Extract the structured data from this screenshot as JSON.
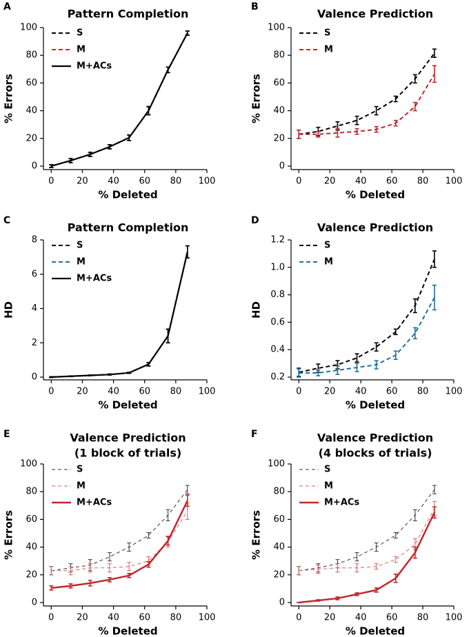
{
  "chart_data": [
    {
      "type": "line",
      "panel": "A",
      "title": "Pattern Completion",
      "xlabel": "% Deleted",
      "ylabel": "% Errors",
      "x": [
        0,
        12.5,
        25,
        37.5,
        50,
        62.5,
        75,
        87.5
      ],
      "xlim": [
        -5,
        100
      ],
      "xticks": [
        0,
        20,
        40,
        60,
        80,
        100
      ],
      "ylim": [
        -2.5,
        100
      ],
      "yticks": [
        0,
        20,
        40,
        60,
        80,
        100
      ],
      "legend": "upper left",
      "series": [
        {
          "name": "S",
          "color": "#000000",
          "linestyle": "dashed",
          "linewidth": 2,
          "values": [
            0,
            4,
            8.5,
            14,
            20.5,
            40,
            69.5,
            96
          ],
          "errors": [
            1,
            1.5,
            1.5,
            1.5,
            2,
            3,
            2,
            1.5
          ]
        },
        {
          "name": "M",
          "color": "#c0282d",
          "linestyle": "dashed",
          "linewidth": 2,
          "values": [
            0,
            4,
            8.5,
            14,
            20.5,
            40,
            69.5,
            96
          ],
          "errors": [
            1,
            1.5,
            1.5,
            1.5,
            2,
            3,
            2,
            1.5
          ]
        },
        {
          "name": "M+ACs",
          "color": "#000000",
          "linestyle": "solid",
          "linewidth": 2.2,
          "values": [
            0,
            4,
            8.5,
            14,
            20.5,
            40,
            69.5,
            96
          ],
          "errors": [
            1,
            1.5,
            1.5,
            1.5,
            2,
            3,
            2,
            1.5
          ]
        }
      ]
    },
    {
      "type": "line",
      "panel": "B",
      "title": "Valence Prediction",
      "xlabel": "% Deleted",
      "ylabel": "% Errors",
      "x": [
        0,
        12.5,
        25,
        37.5,
        50,
        62.5,
        75,
        87.5
      ],
      "xlim": [
        -5,
        100
      ],
      "xticks": [
        0,
        20,
        40,
        60,
        80,
        100
      ],
      "ylim": [
        -2.5,
        100
      ],
      "yticks": [
        0,
        20,
        40,
        60,
        80,
        100
      ],
      "legend": "upper left",
      "series": [
        {
          "name": "S",
          "color": "#000000",
          "linestyle": "dashed",
          "linewidth": 2,
          "values": [
            23,
            25,
            29,
            33,
            40,
            48.5,
            63,
            81.5
          ],
          "errors": [
            3,
            3,
            3,
            3,
            3,
            2,
            3,
            3
          ]
        },
        {
          "name": "M",
          "color": "#c0282d",
          "linestyle": "dashed",
          "linewidth": 2,
          "values": [
            23,
            23,
            24,
            25,
            26.5,
            31,
            43,
            66.5
          ],
          "errors": [
            3,
            2,
            3,
            2,
            2,
            2,
            3,
            6
          ]
        }
      ]
    },
    {
      "type": "line",
      "panel": "C",
      "title": "Pattern Completion",
      "xlabel": "% Deleted",
      "ylabel": "HD",
      "x": [
        0,
        12.5,
        25,
        37.5,
        50,
        62.5,
        75,
        87.5
      ],
      "xlim": [
        -5,
        100
      ],
      "xticks": [
        0,
        20,
        40,
        60,
        80,
        100
      ],
      "ylim": [
        -0.16,
        8
      ],
      "yticks": [
        0,
        2,
        4,
        6,
        8
      ],
      "legend": "upper left",
      "series": [
        {
          "name": "S",
          "color": "#000000",
          "linestyle": "dashed",
          "linewidth": 2,
          "values": [
            0,
            0.05,
            0.1,
            0.15,
            0.25,
            0.75,
            2.4,
            7.3
          ],
          "errors": [
            0.02,
            0.02,
            0.02,
            0.03,
            0.03,
            0.1,
            0.4,
            0.35
          ]
        },
        {
          "name": "M",
          "color": "#1f6f9e",
          "linestyle": "dashed",
          "linewidth": 2,
          "values": [
            0,
            0.05,
            0.1,
            0.15,
            0.25,
            0.75,
            2.4,
            7.3
          ],
          "errors": [
            0.02,
            0.02,
            0.02,
            0.03,
            0.03,
            0.1,
            0.4,
            0.35
          ]
        },
        {
          "name": "M+ACs",
          "color": "#000000",
          "linestyle": "solid",
          "linewidth": 2.2,
          "values": [
            0,
            0.05,
            0.1,
            0.15,
            0.25,
            0.75,
            2.4,
            7.3
          ],
          "errors": [
            0.02,
            0.02,
            0.02,
            0.03,
            0.03,
            0.1,
            0.4,
            0.35
          ]
        }
      ]
    },
    {
      "type": "line",
      "panel": "D",
      "title": "Valence Prediction",
      "xlabel": "% Deleted",
      "ylabel": "HD",
      "x": [
        0,
        12.5,
        25,
        37.5,
        50,
        62.5,
        75,
        87.5
      ],
      "xlim": [
        -5,
        100
      ],
      "xticks": [
        0,
        20,
        40,
        60,
        80,
        100
      ],
      "ylim": [
        0.18,
        1.2
      ],
      "yticks": [
        0.2,
        0.4,
        0.6,
        0.8,
        {
          "value": 1,
          "label": "1.0"
        },
        1.2
      ],
      "legend": "upper left",
      "series": [
        {
          "name": "S",
          "color": "#000000",
          "linestyle": "dashed",
          "linewidth": 2,
          "values": [
            0.235,
            0.265,
            0.29,
            0.34,
            0.42,
            0.53,
            0.72,
            1.06
          ],
          "errors": [
            0.03,
            0.03,
            0.03,
            0.03,
            0.03,
            0.02,
            0.05,
            0.06
          ]
        },
        {
          "name": "M",
          "color": "#1f6f9e",
          "linestyle": "dashed",
          "linewidth": 2,
          "values": [
            0.23,
            0.23,
            0.25,
            0.27,
            0.29,
            0.36,
            0.52,
            0.78
          ],
          "errors": [
            0.03,
            0.02,
            0.03,
            0.03,
            0.03,
            0.03,
            0.04,
            0.09
          ]
        }
      ]
    },
    {
      "type": "line",
      "panel": "E",
      "title": "Valence Prediction",
      "subtitle": "(1 block of trials)",
      "xlabel": "% Deleted",
      "ylabel": "% Errors",
      "x": [
        0,
        12.5,
        25,
        37.5,
        50,
        62.5,
        75,
        87.5
      ],
      "xlim": [
        -5,
        100
      ],
      "xticks": [
        0,
        20,
        40,
        60,
        80,
        100
      ],
      "ylim": [
        -2.5,
        100
      ],
      "yticks": [
        0,
        20,
        40,
        60,
        80,
        100
      ],
      "legend": "upper left",
      "series": [
        {
          "name": "S",
          "color": "#333333",
          "linestyle": "dashed",
          "linewidth": 1,
          "values": [
            23,
            25,
            27,
            33,
            40,
            48.5,
            63,
            81.5
          ],
          "errors": [
            3,
            3,
            4,
            3,
            3,
            2,
            4,
            3
          ]
        },
        {
          "name": "M",
          "color": "#d0605f",
          "linestyle": "dashed",
          "linewidth": 1,
          "values": [
            23,
            23,
            25,
            25,
            26,
            30,
            44,
            66
          ],
          "errors": [
            3,
            3,
            3,
            3,
            3,
            3,
            4,
            6
          ]
        },
        {
          "name": "M+ACs",
          "color": "#c0282d",
          "linestyle": "solid",
          "linewidth": 2.5,
          "values": [
            10.5,
            12,
            14,
            16.5,
            19.5,
            27.5,
            44.5,
            73.5
          ],
          "errors": [
            1.5,
            1.5,
            2,
            1.5,
            1.5,
            2,
            3,
            4
          ]
        }
      ]
    },
    {
      "type": "line",
      "panel": "F",
      "title": "Valence Prediction",
      "subtitle": "(4 blocks of trials)",
      "xlabel": "% Deleted",
      "ylabel": "% Errors",
      "x": [
        0,
        12.5,
        25,
        37.5,
        50,
        62.5,
        75,
        87.5
      ],
      "xlim": [
        -5,
        100
      ],
      "xticks": [
        0,
        20,
        40,
        60,
        80,
        100
      ],
      "ylim": [
        -2.5,
        100
      ],
      "yticks": [
        0,
        20,
        40,
        60,
        80,
        100
      ],
      "legend": "upper left",
      "series": [
        {
          "name": "S",
          "color": "#333333",
          "linestyle": "dashed",
          "linewidth": 1,
          "values": [
            23,
            25,
            28,
            33,
            40,
            48.5,
            63,
            81.5
          ],
          "errors": [
            3,
            3,
            3,
            3,
            3,
            2,
            4,
            3
          ]
        },
        {
          "name": "M",
          "color": "#d0605f",
          "linestyle": "dashed",
          "linewidth": 1,
          "values": [
            23,
            24,
            25,
            25,
            26,
            31,
            42,
            68
          ],
          "errors": [
            3,
            3,
            3,
            3,
            2,
            2,
            4,
            5
          ]
        },
        {
          "name": "M+ACs",
          "color": "#c0282d",
          "linestyle": "solid",
          "linewidth": 2.5,
          "values": [
            0,
            1.5,
            3,
            6,
            9,
            17.5,
            36,
            65
          ],
          "errors": [
            0,
            0.5,
            1,
            1,
            1.5,
            3,
            4,
            4
          ]
        }
      ]
    }
  ]
}
